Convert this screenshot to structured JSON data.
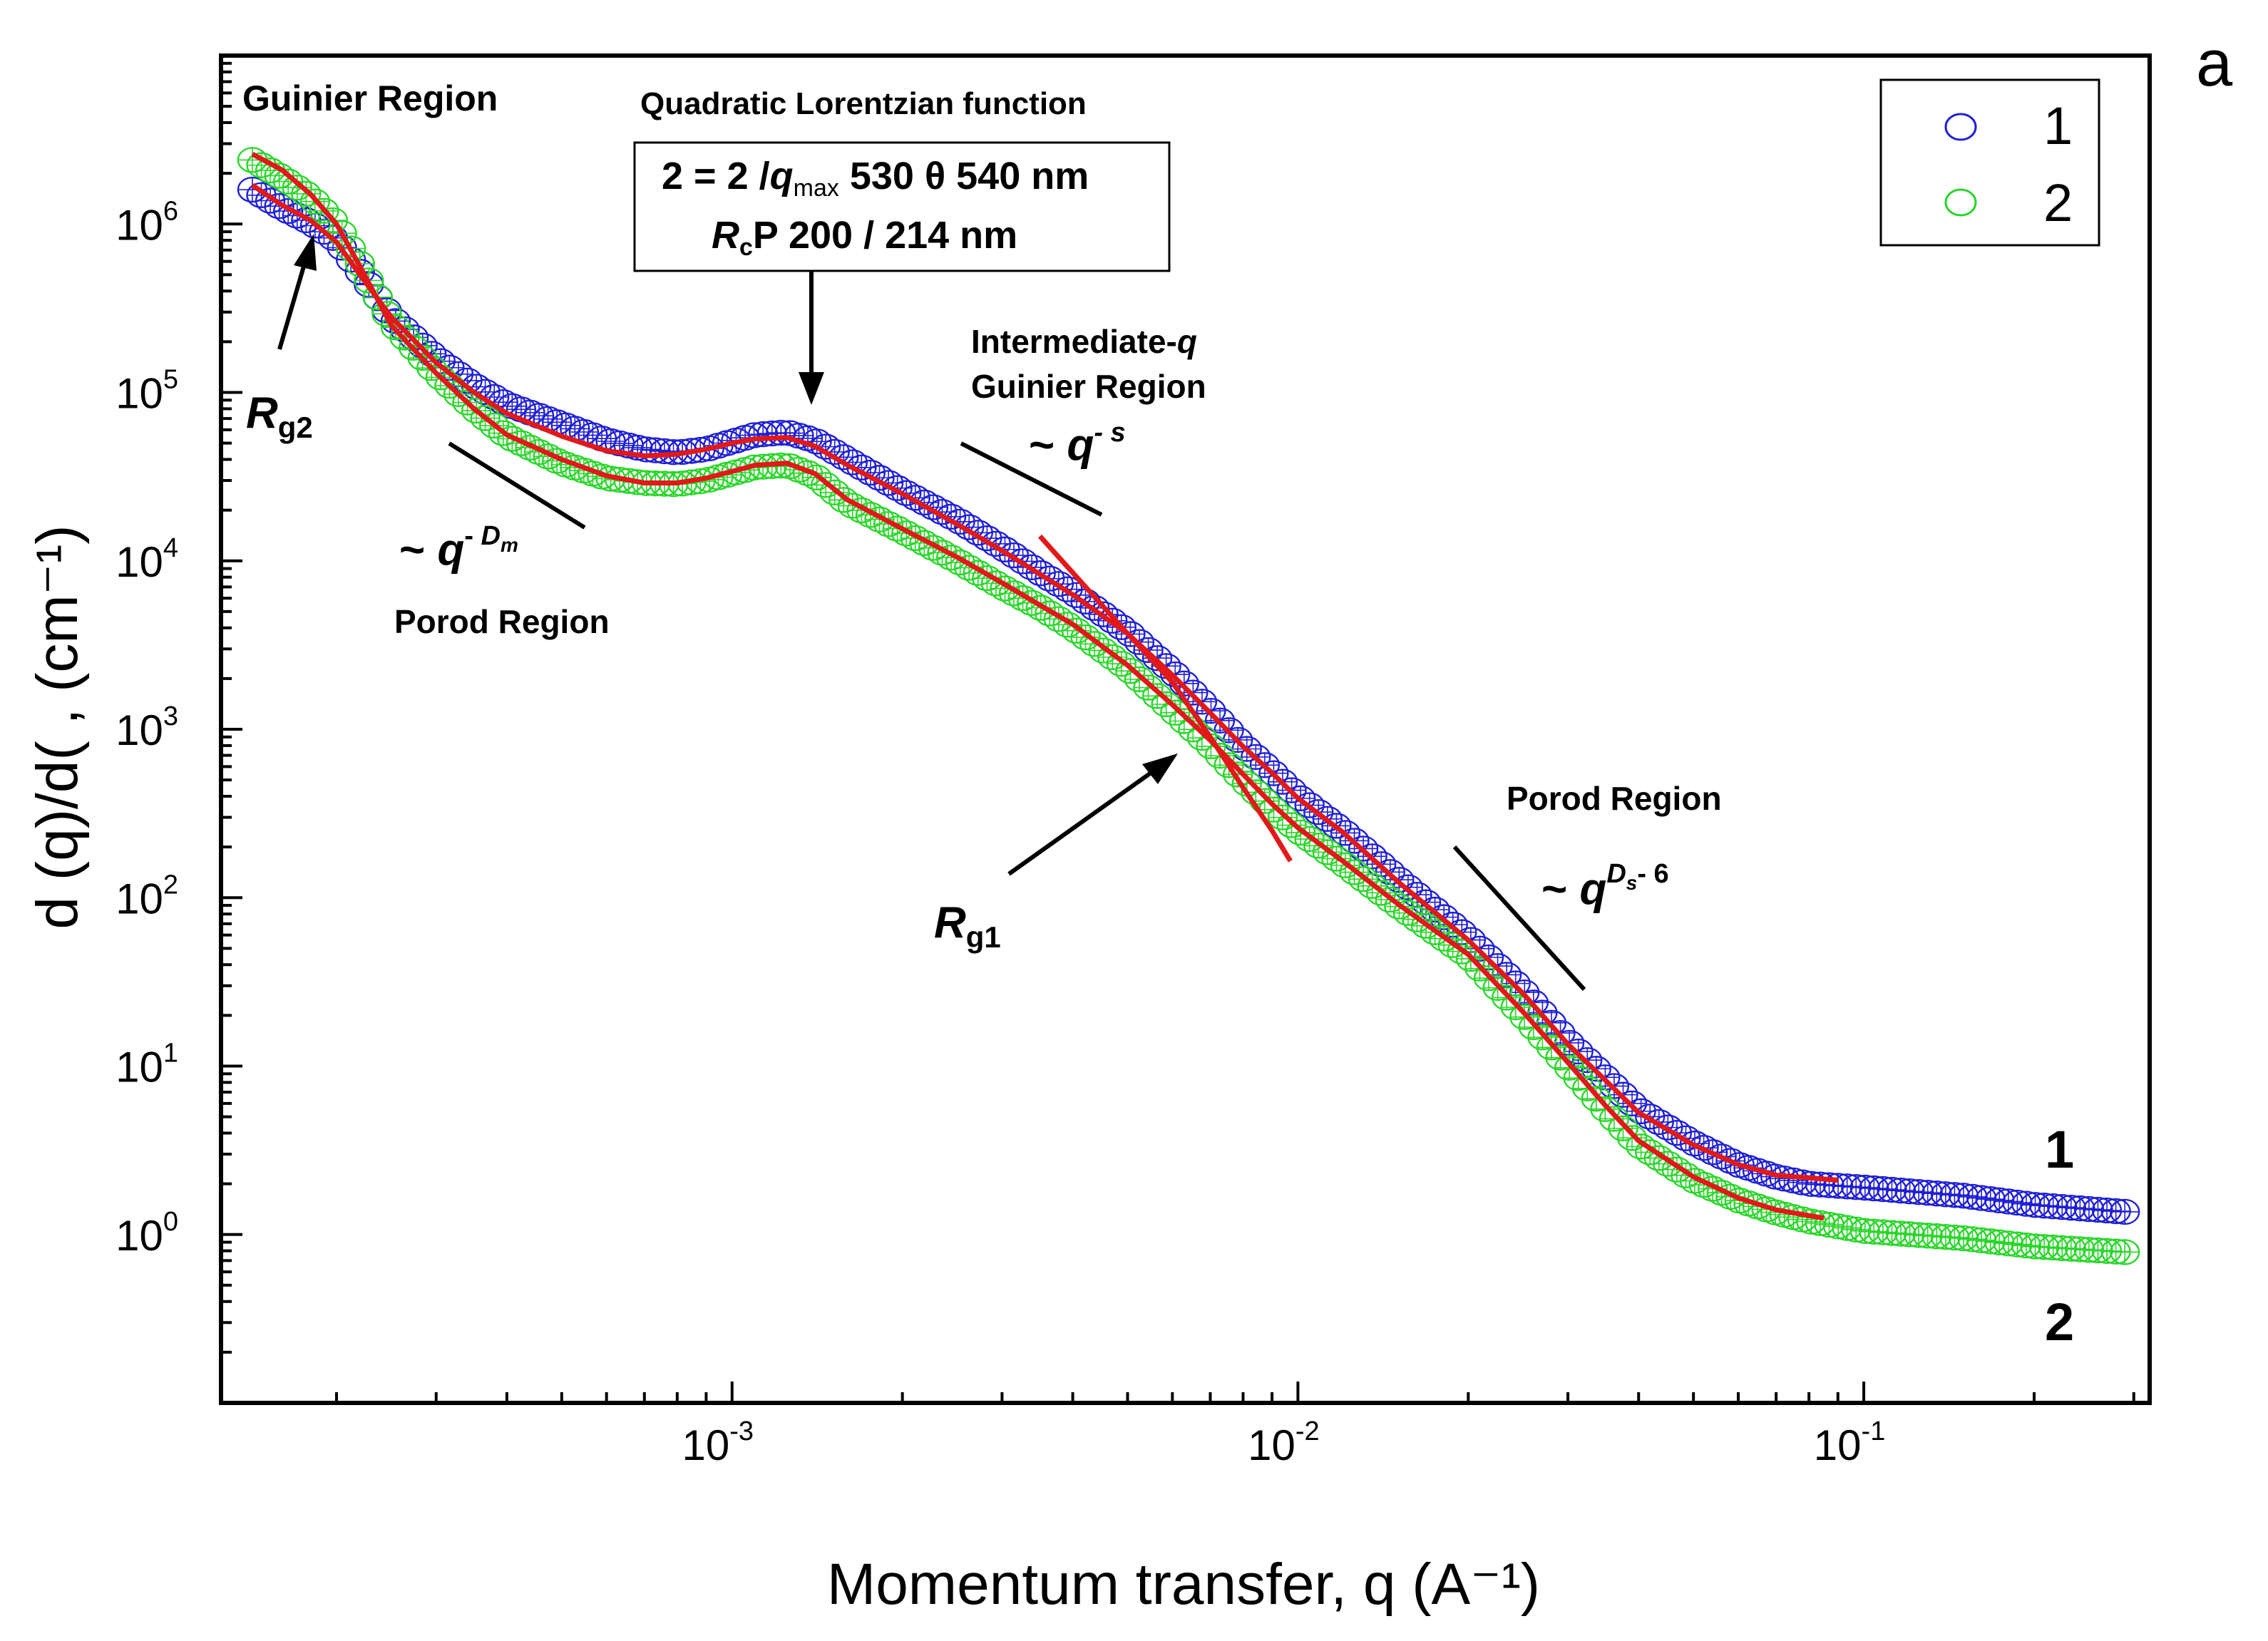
{
  "panel_label": "a",
  "chart_data": {
    "type": "scatter",
    "xscale": "log",
    "yscale": "log",
    "xlim": [
      0.000125,
      0.32
    ],
    "ylim": [
      0.1,
      10000000
    ],
    "xlabel": "Momentum transfer, q (A⁻¹)",
    "ylabel": "d  (q)/d( , (cm⁻¹)",
    "x_ticks": [
      {
        "value": 0.001,
        "base": "10",
        "exp": "-3"
      },
      {
        "value": 0.01,
        "base": "10",
        "exp": "-2"
      },
      {
        "value": 0.1,
        "base": "10",
        "exp": "-1"
      }
    ],
    "y_ticks": [
      {
        "value": 1,
        "base": "10",
        "exp": "0"
      },
      {
        "value": 10,
        "base": "10",
        "exp": "1"
      },
      {
        "value": 100,
        "base": "10",
        "exp": "2"
      },
      {
        "value": 1000,
        "base": "10",
        "exp": "3"
      },
      {
        "value": 10000,
        "base": "10",
        "exp": "4"
      },
      {
        "value": 100000,
        "base": "10",
        "exp": "5"
      },
      {
        "value": 1000000,
        "base": "10",
        "exp": "6"
      }
    ],
    "legend": {
      "position": "top-right",
      "entries": [
        "1",
        "2"
      ]
    },
    "series": [
      {
        "name": "1",
        "marker": "open-circle",
        "color": "#1f1fd6",
        "points": [
          [
            0.000142,
            1600000
          ],
          [
            0.00016,
            1250000
          ],
          [
            0.00018,
            1020000
          ],
          [
            0.0002,
            800000
          ],
          [
            0.00022,
            520000
          ],
          [
            0.00025,
            280000
          ],
          [
            0.0003,
            160000
          ],
          [
            0.00035,
            110000
          ],
          [
            0.0004,
            85000
          ],
          [
            0.0005,
            65000
          ],
          [
            0.0006,
            52000
          ],
          [
            0.0007,
            46000
          ],
          [
            0.0008,
            44000
          ],
          [
            0.0009,
            46000
          ],
          [
            0.001,
            51000
          ],
          [
            0.0011,
            56000
          ],
          [
            0.00125,
            58000
          ],
          [
            0.0014,
            52000
          ],
          [
            0.0016,
            40000
          ],
          [
            0.002,
            26000
          ],
          [
            0.0025,
            17500
          ],
          [
            0.003,
            12000
          ],
          [
            0.0035,
            8500
          ],
          [
            0.004,
            6500
          ],
          [
            0.005,
            3800
          ],
          [
            0.006,
            2200
          ],
          [
            0.007,
            1300
          ],
          [
            0.008,
            800
          ],
          [
            0.009,
            560
          ],
          [
            0.01,
            400
          ],
          [
            0.012,
            250
          ],
          [
            0.015,
            130
          ],
          [
            0.02,
            58
          ],
          [
            0.025,
            28
          ],
          [
            0.03,
            14
          ],
          [
            0.035,
            8.5
          ],
          [
            0.04,
            5.5
          ],
          [
            0.05,
            3.5
          ],
          [
            0.06,
            2.6
          ],
          [
            0.07,
            2.2
          ],
          [
            0.08,
            2.0
          ],
          [
            0.1,
            1.9
          ],
          [
            0.15,
            1.7
          ],
          [
            0.2,
            1.5
          ],
          [
            0.3,
            1.35
          ]
        ]
      },
      {
        "name": "2",
        "marker": "open-circle",
        "color": "#2ad62a",
        "points": [
          [
            0.000142,
            2400000
          ],
          [
            0.00016,
            1900000
          ],
          [
            0.00018,
            1450000
          ],
          [
            0.0002,
            1000000
          ],
          [
            0.00022,
            580000
          ],
          [
            0.00025,
            260000
          ],
          [
            0.0003,
            130000
          ],
          [
            0.00035,
            80000
          ],
          [
            0.0004,
            55000
          ],
          [
            0.0005,
            38000
          ],
          [
            0.0006,
            31000
          ],
          [
            0.0007,
            29000
          ],
          [
            0.0008,
            28500
          ],
          [
            0.0009,
            30000
          ],
          [
            0.001,
            33000
          ],
          [
            0.0011,
            36000
          ],
          [
            0.00125,
            37000
          ],
          [
            0.0014,
            32000
          ],
          [
            0.0016,
            22000
          ],
          [
            0.002,
            15000
          ],
          [
            0.0025,
            10000
          ],
          [
            0.003,
            7000
          ],
          [
            0.0035,
            5300
          ],
          [
            0.004,
            4000
          ],
          [
            0.005,
            2300
          ],
          [
            0.006,
            1300
          ],
          [
            0.007,
            800
          ],
          [
            0.008,
            500
          ],
          [
            0.009,
            340
          ],
          [
            0.01,
            250
          ],
          [
            0.012,
            160
          ],
          [
            0.015,
            90
          ],
          [
            0.02,
            45
          ],
          [
            0.025,
            20
          ],
          [
            0.03,
            10
          ],
          [
            0.035,
            5.5
          ],
          [
            0.04,
            3.4
          ],
          [
            0.05,
            2.1
          ],
          [
            0.06,
            1.6
          ],
          [
            0.07,
            1.35
          ],
          [
            0.08,
            1.2
          ],
          [
            0.1,
            1.05
          ],
          [
            0.15,
            0.95
          ],
          [
            0.2,
            0.85
          ],
          [
            0.3,
            0.78
          ]
        ]
      }
    ],
    "fit_curves": [
      {
        "name": "fit 1",
        "color": "#e11919",
        "points": [
          [
            0.000142,
            1700000
          ],
          [
            0.00016,
            1300000
          ],
          [
            0.00018,
            1050000
          ],
          [
            0.0002,
            780000
          ],
          [
            0.00022,
            500000
          ],
          [
            0.00025,
            280000
          ],
          [
            0.0003,
            150000
          ],
          [
            0.00035,
            100000
          ],
          [
            0.0004,
            75000
          ],
          [
            0.0005,
            55000
          ],
          [
            0.0006,
            45000
          ],
          [
            0.0007,
            42000
          ],
          [
            0.0008,
            43000
          ],
          [
            0.0009,
            46000
          ],
          [
            0.001,
            50000
          ],
          [
            0.0011,
            53000
          ],
          [
            0.00125,
            54000
          ],
          [
            0.0014,
            48000
          ],
          [
            0.0016,
            37000
          ],
          [
            0.002,
            25000
          ],
          [
            0.0025,
            16500
          ],
          [
            0.003,
            11500
          ],
          [
            0.004,
            6300
          ],
          [
            0.005,
            3700
          ],
          [
            0.006,
            2100
          ],
          [
            0.007,
            1250
          ],
          [
            0.008,
            790
          ],
          [
            0.009,
            550
          ],
          [
            0.01,
            390
          ],
          [
            0.012,
            245
          ],
          [
            0.015,
            125
          ],
          [
            0.02,
            56
          ],
          [
            0.025,
            27
          ],
          [
            0.03,
            13.5
          ],
          [
            0.035,
            8.2
          ],
          [
            0.04,
            5.3
          ],
          [
            0.05,
            3.4
          ],
          [
            0.06,
            2.6
          ],
          [
            0.07,
            2.25
          ],
          [
            0.09,
            2.1
          ]
        ]
      },
      {
        "name": "fit 2",
        "color": "#e11919",
        "points": [
          [
            0.000142,
            2600000
          ],
          [
            0.00016,
            2100000
          ],
          [
            0.00018,
            1500000
          ],
          [
            0.0002,
            1000000
          ],
          [
            0.00022,
            560000
          ],
          [
            0.00025,
            250000
          ],
          [
            0.0003,
            130000
          ],
          [
            0.00035,
            80000
          ],
          [
            0.0004,
            56000
          ],
          [
            0.0005,
            40000
          ],
          [
            0.0006,
            32000
          ],
          [
            0.0007,
            29000
          ],
          [
            0.0008,
            29000
          ],
          [
            0.0009,
            31000
          ],
          [
            0.001,
            34000
          ],
          [
            0.0011,
            37000
          ],
          [
            0.00125,
            38000
          ],
          [
            0.0014,
            33000
          ],
          [
            0.0016,
            23000
          ],
          [
            0.002,
            15500
          ],
          [
            0.0025,
            10500
          ],
          [
            0.003,
            7400
          ],
          [
            0.004,
            4200
          ],
          [
            0.005,
            2400
          ],
          [
            0.006,
            1400
          ],
          [
            0.007,
            860
          ],
          [
            0.008,
            540
          ],
          [
            0.009,
            360
          ],
          [
            0.01,
            260
          ],
          [
            0.012,
            165
          ],
          [
            0.015,
            92
          ],
          [
            0.02,
            46
          ],
          [
            0.025,
            21
          ],
          [
            0.03,
            10.5
          ],
          [
            0.035,
            5.8
          ],
          [
            0.04,
            3.6
          ],
          [
            0.05,
            2.2
          ],
          [
            0.06,
            1.65
          ],
          [
            0.07,
            1.4
          ],
          [
            0.085,
            1.25
          ]
        ]
      },
      {
        "name": "Rg1 fit",
        "color": "#e11919",
        "points": [
          [
            0.0035,
            14000
          ],
          [
            0.004,
            8500
          ],
          [
            0.005,
            3700
          ],
          [
            0.006,
            1900
          ],
          [
            0.007,
            900
          ],
          [
            0.008,
            450
          ],
          [
            0.009,
            250
          ],
          [
            0.0097,
            165
          ]
        ]
      }
    ],
    "annotations": {
      "guinier_region": "Guinier Region",
      "quadratic_title": "Quadratic Lorentzian function",
      "box_line1": {
        "lead": "2 = 2  /",
        "q": "q",
        "qsub": "max",
        "tail": "   530 θ 540 nm"
      },
      "box_line2": {
        "r": "R",
        "rsub": "c",
        "tail": "P 200 /  214 nm"
      },
      "intermediate_line1": "Intermediate-",
      "intermediate_q": "q",
      "intermediate_line2": "Guinier Region",
      "porod_low_label": "Porod Region",
      "porod_high_label": "Porod Region",
      "rg2": {
        "r": "R",
        "sub": "g2"
      },
      "rg1": {
        "r": "R",
        "sub": "g1"
      },
      "slope_mid": {
        "lead": "~ ",
        "q": "q",
        "sup": "- s"
      },
      "slope_low": {
        "lead": "~ ",
        "q": "q",
        "gap": "- ",
        "d": "D",
        "dsub": "m"
      },
      "slope_high": {
        "lead": "~ ",
        "q": "q",
        "d": "D",
        "dsub": "s",
        "tail": "- 6"
      },
      "end_label_1": "1",
      "end_label_2": "2"
    }
  }
}
